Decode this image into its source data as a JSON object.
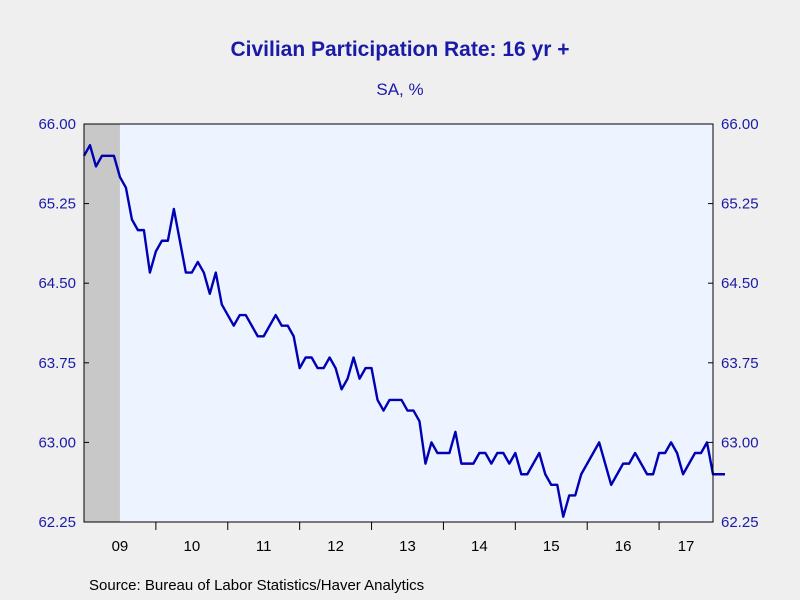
{
  "chart_data": {
    "type": "line",
    "title": "Civilian Participation Rate: 16 yr +",
    "subtitle": "SA, %",
    "source": "Source:  Bureau of Labor Statistics/Haver Analytics",
    "ylim": [
      62.25,
      66.0
    ],
    "yticks": [
      "66.00",
      "65.25",
      "64.50",
      "63.75",
      "63.00",
      "62.25"
    ],
    "ytick_values": [
      66.0,
      65.25,
      64.5,
      63.75,
      63.0,
      62.25
    ],
    "xlim": [
      "2009-01",
      "2017-10"
    ],
    "x_ticklabels": [
      "09",
      "10",
      "11",
      "12",
      "13",
      "14",
      "15",
      "16",
      "17"
    ],
    "recession_shading": {
      "start": "2009-01",
      "end": "2009-06"
    },
    "grid": false,
    "y_axis_both_sides": true,
    "line_color": "#0000b4",
    "plot_background": "#eef4ff",
    "recession_color": "#c8c8c8",
    "series": [
      {
        "start": "2009-01",
        "frequency": "monthly",
        "values": [
          65.7,
          65.8,
          65.6,
          65.7,
          65.7,
          65.7,
          65.5,
          65.4,
          65.1,
          65.0,
          65.0,
          64.6,
          64.8,
          64.9,
          64.9,
          65.2,
          64.9,
          64.6,
          64.6,
          64.7,
          64.6,
          64.4,
          64.6,
          64.3,
          64.2,
          64.1,
          64.2,
          64.2,
          64.1,
          64.0,
          64.0,
          64.1,
          64.2,
          64.1,
          64.1,
          64.0,
          63.7,
          63.8,
          63.8,
          63.7,
          63.7,
          63.8,
          63.7,
          63.5,
          63.6,
          63.8,
          63.6,
          63.7,
          63.7,
          63.4,
          63.3,
          63.4,
          63.4,
          63.4,
          63.3,
          63.3,
          63.2,
          62.8,
          63.0,
          62.9,
          62.9,
          62.9,
          63.1,
          62.8,
          62.8,
          62.8,
          62.9,
          62.9,
          62.8,
          62.9,
          62.9,
          62.8,
          62.9,
          62.7,
          62.7,
          62.8,
          62.9,
          62.7,
          62.6,
          62.6,
          62.3,
          62.5,
          62.5,
          62.7,
          62.8,
          62.9,
          63.0,
          62.8,
          62.6,
          62.7,
          62.8,
          62.8,
          62.9,
          62.8,
          62.7,
          62.7,
          62.9,
          62.9,
          63.0,
          62.9,
          62.7,
          62.8,
          62.9,
          62.9,
          63.0,
          62.7,
          62.7,
          62.7
        ]
      }
    ]
  }
}
